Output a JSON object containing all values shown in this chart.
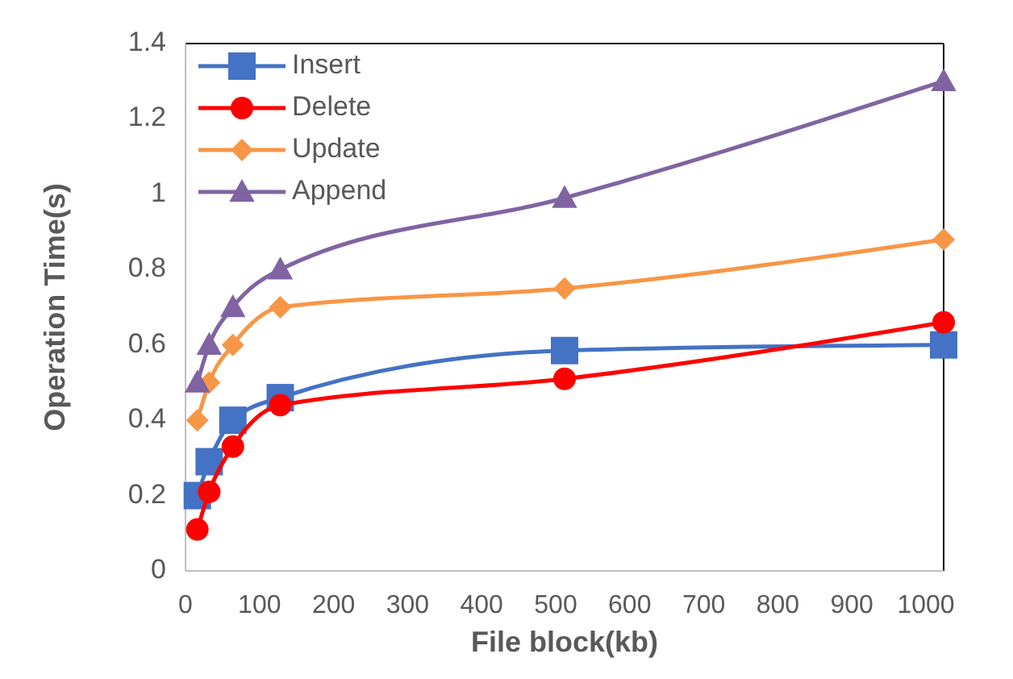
{
  "chart_data": {
    "type": "line",
    "xlabel": "File block(kb)",
    "ylabel": "Operation Time(s)",
    "x": [
      16,
      32,
      64,
      128,
      512,
      1024
    ],
    "xlim": [
      0,
      1024
    ],
    "xticks": [
      0,
      100,
      200,
      300,
      400,
      500,
      600,
      700,
      800,
      900,
      1000
    ],
    "ylim": [
      0,
      1.4
    ],
    "yticks": [
      0,
      0.2,
      0.4,
      0.6,
      0.8,
      1,
      1.2,
      1.4
    ],
    "grid": false,
    "legend": "top left",
    "series": [
      {
        "name": "Insert",
        "color": "#4472c4",
        "marker": "square",
        "values": [
          0.2,
          0.29,
          0.4,
          0.46,
          0.585,
          0.6
        ]
      },
      {
        "name": "Delete",
        "color": "#ff0000",
        "marker": "circle",
        "values": [
          0.11,
          0.21,
          0.33,
          0.44,
          0.51,
          0.66
        ]
      },
      {
        "name": "Update",
        "color": "#f79646",
        "marker": "diamond",
        "values": [
          0.4,
          0.5,
          0.6,
          0.7,
          0.75,
          0.88
        ]
      },
      {
        "name": "Append",
        "color": "#8064a2",
        "marker": "triangle",
        "values": [
          0.5,
          0.6,
          0.7,
          0.8,
          0.99,
          1.3
        ]
      }
    ]
  }
}
